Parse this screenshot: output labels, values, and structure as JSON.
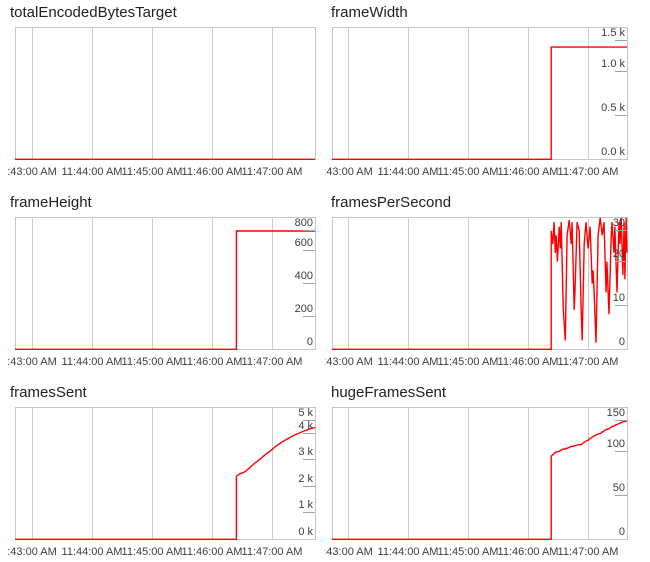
{
  "page": {
    "background": "#ffffff",
    "description": "Grid of six WebRTC outbound video stats line charts"
  },
  "colors": {
    "line": "#ff0000",
    "gridline": "#cccccc",
    "plot_border": "#c6c6c6",
    "axis_tick": "#a3a3a3",
    "title_text": "#212121",
    "axis_text": "#3d3d3d"
  },
  "x_ticks": [
    ":43:00 AM",
    "11:44:00 AM",
    "11:45:00 AM",
    "11:46:00 AM",
    "11:47:00 AM"
  ],
  "chart_data": [
    {
      "type": "line",
      "title": "totalEncodedBytesTarget",
      "xlabel": "",
      "ylabel": "",
      "ylim": [
        0,
        1
      ],
      "x_tick_labels": [
        ":43:00 AM",
        "11:44:00 AM",
        "11:45:00 AM",
        "11:46:00 AM",
        "11:47:00 AM"
      ],
      "y_ticks": [],
      "grid": "vertical-only",
      "series": [
        {
          "name": "totalEncodedBytesTarget",
          "points": [
            [
              0,
              0
            ],
            [
              1,
              0
            ]
          ]
        }
      ]
    },
    {
      "type": "line",
      "title": "frameWidth",
      "xlabel": "",
      "ylabel": "",
      "ylim": [
        0,
        1500
      ],
      "x_tick_labels": [
        ":43:00 AM",
        "11:44:00 AM",
        "11:45:00 AM",
        "11:46:00 AM",
        "11:47:00 AM"
      ],
      "y_ticks": [
        {
          "label": "1.5 k",
          "value": 1500
        },
        {
          "label": "1.0 k",
          "value": 1000
        },
        {
          "label": "0.5 k",
          "value": 500
        },
        {
          "label": "0.0 k",
          "value": 0
        }
      ],
      "grid": "vertical-only",
      "series": [
        {
          "name": "frameWidth",
          "points": [
            [
              0,
              0
            ],
            [
              0.743,
              0
            ],
            [
              0.743,
              1280
            ],
            [
              1,
              1280
            ]
          ]
        }
      ]
    },
    {
      "type": "line",
      "title": "frameHeight",
      "xlabel": "",
      "ylabel": "",
      "ylim": [
        0,
        800
      ],
      "x_tick_labels": [
        ":43:00 AM",
        "11:44:00 AM",
        "11:45:00 AM",
        "11:46:00 AM",
        "11:47:00 AM"
      ],
      "y_ticks": [
        {
          "label": "800",
          "value": 800
        },
        {
          "label": "600",
          "value": 600
        },
        {
          "label": "400",
          "value": 400
        },
        {
          "label": "200",
          "value": 200
        },
        {
          "label": "0",
          "value": 0
        }
      ],
      "grid": "vertical-only",
      "series": [
        {
          "name": "frameHeight",
          "points": [
            [
              0,
              0
            ],
            [
              0.738,
              0
            ],
            [
              0.738,
              720
            ],
            [
              1,
              720
            ]
          ]
        }
      ]
    },
    {
      "type": "line",
      "title": "framesPerSecond",
      "xlabel": "",
      "ylabel": "",
      "ylim": [
        0,
        30
      ],
      "x_tick_labels": [
        ":43:00 AM",
        "11:44:00 AM",
        "11:45:00 AM",
        "11:46:00 AM",
        "11:47:00 AM"
      ],
      "y_ticks": [
        {
          "label": "30",
          "value": 30
        },
        {
          "label": "20",
          "value": 20
        },
        {
          "label": "10",
          "value": 10
        },
        {
          "label": "0",
          "value": 0
        }
      ],
      "grid": "vertical-only",
      "series": [
        {
          "name": "framesPerSecond",
          "points": [
            [
              0,
              0
            ],
            [
              0.743,
              0
            ],
            [
              0.743,
              27
            ],
            [
              0.748,
              24
            ],
            [
              0.753,
              29
            ],
            [
              0.757,
              22
            ],
            [
              0.76,
              26
            ],
            [
              0.764,
              20
            ],
            [
              0.77,
              28
            ],
            [
              0.774,
              23
            ],
            [
              0.777,
              29
            ],
            [
              0.784,
              9
            ],
            [
              0.791,
              2
            ],
            [
              0.797,
              26
            ],
            [
              0.804,
              29.5
            ],
            [
              0.811,
              24
            ],
            [
              0.814,
              29
            ],
            [
              0.821,
              9
            ],
            [
              0.824,
              14
            ],
            [
              0.831,
              29
            ],
            [
              0.838,
              27
            ],
            [
              0.845,
              8
            ],
            [
              0.848,
              2
            ],
            [
              0.855,
              24
            ],
            [
              0.861,
              29
            ],
            [
              0.868,
              23
            ],
            [
              0.875,
              28
            ],
            [
              0.882,
              15
            ],
            [
              0.885,
              18
            ],
            [
              0.889,
              12
            ],
            [
              0.895,
              1.5
            ],
            [
              0.902,
              26
            ],
            [
              0.909,
              30
            ],
            [
              0.916,
              26
            ],
            [
              0.922,
              29
            ],
            [
              0.929,
              13
            ],
            [
              0.932,
              20
            ],
            [
              0.939,
              8
            ],
            [
              0.946,
              25
            ],
            [
              0.949,
              29
            ],
            [
              0.956,
              22
            ],
            [
              0.959,
              28
            ],
            [
              0.966,
              13
            ],
            [
              0.973,
              29
            ],
            [
              0.976,
              24
            ],
            [
              0.98,
              30
            ],
            [
              0.986,
              17
            ],
            [
              0.99,
              29
            ],
            [
              0.993,
              16
            ],
            [
              0.997,
              30
            ],
            [
              1,
              22
            ]
          ]
        }
      ]
    },
    {
      "type": "line",
      "title": "framesSent",
      "xlabel": "",
      "ylabel": "",
      "ylim": [
        0,
        5000
      ],
      "x_tick_labels": [
        ":43:00 AM",
        "11:44:00 AM",
        "11:45:00 AM",
        "11:46:00 AM",
        "11:47:00 AM"
      ],
      "y_ticks": [
        {
          "label": "5 k",
          "value": 5000
        },
        {
          "label": "4 k",
          "value": 4000
        },
        {
          "label": "3 k",
          "value": 3000
        },
        {
          "label": "2 k",
          "value": 2000
        },
        {
          "label": "1 k",
          "value": 1000
        },
        {
          "label": "0 k",
          "value": 0
        }
      ],
      "grid": "vertical-only",
      "series": [
        {
          "name": "framesSent",
          "points": [
            [
              0,
              0
            ],
            [
              0.738,
              0
            ],
            [
              0.738,
              2400
            ],
            [
              0.75,
              2490
            ],
            [
              0.765,
              2560
            ],
            [
              0.78,
              2700
            ],
            [
              0.8,
              2900
            ],
            [
              0.82,
              3080
            ],
            [
              0.835,
              3230
            ],
            [
              0.85,
              3350
            ],
            [
              0.87,
              3540
            ],
            [
              0.89,
              3700
            ],
            [
              0.91,
              3830
            ],
            [
              0.93,
              3960
            ],
            [
              0.96,
              4100
            ],
            [
              0.99,
              4230
            ],
            [
              1,
              4250
            ]
          ]
        }
      ]
    },
    {
      "type": "line",
      "title": "hugeFramesSent",
      "xlabel": "",
      "ylabel": "",
      "ylim": [
        0,
        150
      ],
      "x_tick_labels": [
        ":43:00 AM",
        "11:44:00 AM",
        "11:45:00 AM",
        "11:46:00 AM",
        "11:47:00 AM"
      ],
      "y_ticks": [
        {
          "label": "150",
          "value": 150
        },
        {
          "label": "100",
          "value": 100
        },
        {
          "label": "50",
          "value": 50
        },
        {
          "label": "0",
          "value": 0
        }
      ],
      "grid": "vertical-only",
      "series": [
        {
          "name": "hugeFramesSent",
          "points": [
            [
              0,
              0
            ],
            [
              0.743,
              0
            ],
            [
              0.743,
              95
            ],
            [
              0.75,
              97
            ],
            [
              0.757,
              99
            ],
            [
              0.764,
              100
            ],
            [
              0.77,
              100
            ],
            [
              0.777,
              102
            ],
            [
              0.784,
              103
            ],
            [
              0.791,
              103
            ],
            [
              0.804,
              105
            ],
            [
              0.811,
              106
            ],
            [
              0.818,
              106
            ],
            [
              0.824,
              107
            ],
            [
              0.838,
              108
            ],
            [
              0.845,
              108
            ],
            [
              0.852,
              110
            ],
            [
              0.861,
              112
            ],
            [
              0.868,
              113
            ],
            [
              0.875,
              115
            ],
            [
              0.885,
              117
            ],
            [
              0.889,
              118
            ],
            [
              0.895,
              119
            ],
            [
              0.902,
              120
            ],
            [
              0.912,
              121
            ],
            [
              0.919,
              123
            ],
            [
              0.929,
              125
            ],
            [
              0.939,
              126
            ],
            [
              0.946,
              128
            ],
            [
              0.953,
              129
            ],
            [
              0.959,
              130
            ],
            [
              0.966,
              131
            ],
            [
              0.973,
              132
            ],
            [
              0.98,
              133
            ],
            [
              0.986,
              134
            ],
            [
              1,
              135
            ]
          ]
        }
      ]
    }
  ]
}
